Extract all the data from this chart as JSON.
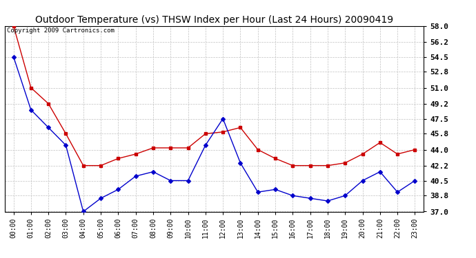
{
  "title": "Outdoor Temperature (vs) THSW Index per Hour (Last 24 Hours) 20090419",
  "copyright_text": "Copyright 2009 Cartronics.com",
  "hours": [
    "00:00",
    "01:00",
    "02:00",
    "03:00",
    "04:00",
    "05:00",
    "06:00",
    "07:00",
    "08:00",
    "09:00",
    "10:00",
    "11:00",
    "12:00",
    "13:00",
    "14:00",
    "15:00",
    "16:00",
    "17:00",
    "18:00",
    "19:00",
    "20:00",
    "21:00",
    "22:00",
    "23:00"
  ],
  "temp": [
    54.5,
    48.5,
    46.5,
    44.5,
    37.0,
    38.5,
    39.5,
    41.0,
    41.5,
    40.5,
    40.5,
    44.5,
    47.5,
    42.5,
    39.2,
    39.5,
    38.8,
    38.5,
    38.2,
    38.8,
    40.5,
    41.5,
    39.2,
    40.5
  ],
  "thsw": [
    58.0,
    51.0,
    49.2,
    45.8,
    42.2,
    42.2,
    43.0,
    43.5,
    44.2,
    44.2,
    44.2,
    45.8,
    46.0,
    46.5,
    44.0,
    43.0,
    42.2,
    42.2,
    42.2,
    42.5,
    43.5,
    44.8,
    43.5,
    44.0
  ],
  "ylim_min": 37.0,
  "ylim_max": 58.0,
  "yticks": [
    37.0,
    38.8,
    40.5,
    42.2,
    44.0,
    45.8,
    47.5,
    49.2,
    51.0,
    52.8,
    54.5,
    56.2,
    58.0
  ],
  "temp_color": "#0000cc",
  "thsw_color": "#cc0000",
  "bg_color": "#ffffff",
  "plot_bg_color": "#ffffff",
  "grid_color": "#c0c0c0",
  "title_fontsize": 10,
  "copyright_fontsize": 6.5,
  "tick_fontsize": 8,
  "xtick_fontsize": 7
}
